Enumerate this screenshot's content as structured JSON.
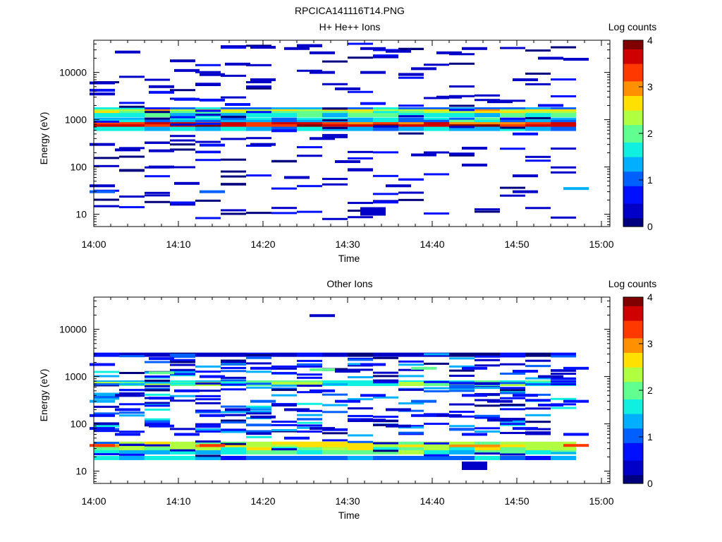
{
  "figure": {
    "title": "RPCICA141116T14.PNG"
  },
  "colors": {
    "palette": [
      "#00007f",
      "#0000c8",
      "#0010ff",
      "#0060ff",
      "#00b0ff",
      "#10f0e0",
      "#60ff90",
      "#b0ff40",
      "#ffe000",
      "#ff9000",
      "#ff3800",
      "#d00000",
      "#7f0000"
    ]
  },
  "chart_data": [
    {
      "type": "heatmap",
      "title": "H+ He++ Ions",
      "xlabel": "Time",
      "ylabel": "Energy (eV)",
      "x_ticks": [
        "14:00",
        "14:10",
        "14:20",
        "14:30",
        "14:40",
        "14:50",
        "15:00"
      ],
      "y_ticks": [
        "10",
        "100",
        "1000",
        "10000"
      ],
      "y_scale": "log",
      "ylim": [
        5.5,
        48000
      ],
      "xlim_minutes": [
        0,
        61
      ],
      "colorbar": {
        "label": "Log counts",
        "ticks": [
          "0",
          "1",
          "2",
          "3",
          "4"
        ],
        "range": [
          0,
          4
        ]
      },
      "bands": [
        {
          "energy": 1650,
          "level": 1.2
        },
        {
          "energy": 1500,
          "level": 2.6
        },
        {
          "energy": 1380,
          "level": 2.2
        },
        {
          "energy": 1250,
          "level": 1.7
        },
        {
          "energy": 1000,
          "level": 1.4
        },
        {
          "energy": 900,
          "level": 1.5
        },
        {
          "energy": 800,
          "level": 3.4
        },
        {
          "energy": 720,
          "level": 3.6
        },
        {
          "energy": 640,
          "level": 1.3
        }
      ],
      "cells": [
        {
          "t": 1,
          "e": 3500,
          "level": 0.3
        },
        {
          "t": 1,
          "e": 4200,
          "level": 0.5
        },
        {
          "t": 1,
          "e": 6000,
          "level": 0.3
        },
        {
          "t": 1,
          "e": 30,
          "level": 0.9
        },
        {
          "t": 1,
          "e": 40,
          "level": 0.3
        },
        {
          "t": 1,
          "e": 300,
          "level": 0.3
        },
        {
          "t": 4,
          "e": 230,
          "level": 0.3
        },
        {
          "t": 4,
          "e": 27000,
          "level": 0.3
        },
        {
          "t": 8,
          "e": 3800,
          "level": 0.5
        },
        {
          "t": 8,
          "e": 5000,
          "level": 0.4
        },
        {
          "t": 8,
          "e": 100,
          "level": 0.3
        },
        {
          "t": 8,
          "e": 220,
          "level": 0.3
        },
        {
          "t": 11,
          "e": 2700,
          "level": 0.5
        },
        {
          "t": 11,
          "e": 11000,
          "level": 0.3
        },
        {
          "t": 11,
          "e": 45,
          "level": 0.3
        },
        {
          "t": 14,
          "e": 2600,
          "level": 0.5
        },
        {
          "t": 14,
          "e": 30,
          "level": 1.1
        },
        {
          "t": 14,
          "e": 290,
          "level": 0.5
        },
        {
          "t": 14,
          "e": 9000,
          "level": 0.3
        },
        {
          "t": 17,
          "e": 15000,
          "level": 0.3
        },
        {
          "t": 17,
          "e": 2100,
          "level": 0.5
        },
        {
          "t": 20,
          "e": 34000,
          "level": 0.3
        },
        {
          "t": 20,
          "e": 7000,
          "level": 0.4
        },
        {
          "t": 20,
          "e": 300,
          "level": 0.4
        },
        {
          "t": 24,
          "e": 32000,
          "level": 0.4
        },
        {
          "t": 24,
          "e": 60,
          "level": 0.3
        },
        {
          "t": 27,
          "e": 26000,
          "level": 0.3
        },
        {
          "t": 27,
          "e": 400,
          "level": 0.4
        },
        {
          "t": 27,
          "e": 10000,
          "level": 0.3
        },
        {
          "t": 30,
          "e": 4500,
          "level": 0.3
        },
        {
          "t": 30,
          "e": 130,
          "level": 0.3
        },
        {
          "t": 33,
          "e": 32000,
          "level": 0.4
        },
        {
          "t": 33,
          "e": 10000,
          "level": 0.3
        },
        {
          "t": 33,
          "e": 11.5,
          "level": 0.2
        },
        {
          "t": 33,
          "e": 2200,
          "level": 0.8
        },
        {
          "t": 36,
          "e": 28000,
          "level": 0.3
        },
        {
          "t": 36,
          "e": 40,
          "level": 0.3
        },
        {
          "t": 39,
          "e": 12000,
          "level": 0.3
        },
        {
          "t": 39,
          "e": 180,
          "level": 0.3
        },
        {
          "t": 42,
          "e": 26000,
          "level": 0.3
        },
        {
          "t": 42,
          "e": 3000,
          "level": 0.3
        },
        {
          "t": 45,
          "e": 32000,
          "level": 0.3
        },
        {
          "t": 45,
          "e": 250,
          "level": 0.4
        },
        {
          "t": 45,
          "e": 110,
          "level": 0.4
        },
        {
          "t": 48,
          "e": 2400,
          "level": 0.3
        },
        {
          "t": 51,
          "e": 7000,
          "level": 0.4
        },
        {
          "t": 51,
          "e": 500,
          "level": 0.5
        },
        {
          "t": 51,
          "e": 30,
          "level": 0.3
        },
        {
          "t": 51,
          "e": 65,
          "level": 0.4
        },
        {
          "t": 54,
          "e": 20000,
          "level": 0.3
        },
        {
          "t": 54,
          "e": 2000,
          "level": 0.6
        },
        {
          "t": 57,
          "e": 35,
          "level": 1.2
        },
        {
          "t": 57,
          "e": 19000,
          "level": 0.3
        }
      ]
    },
    {
      "type": "heatmap",
      "title": "Other Ions",
      "xlabel": "Time",
      "ylabel": "Energy (eV)",
      "x_ticks": [
        "14:00",
        "14:10",
        "14:20",
        "14:30",
        "14:40",
        "14:50",
        "15:00"
      ],
      "y_ticks": [
        "10",
        "100",
        "1000",
        "10000"
      ],
      "y_scale": "log",
      "ylim": [
        5.5,
        48000
      ],
      "xlim_minutes": [
        0,
        61
      ],
      "colorbar": {
        "label": "Log counts",
        "ticks": [
          "0",
          "1",
          "2",
          "3",
          "4"
        ],
        "range": [
          0,
          4
        ]
      },
      "bands": [
        {
          "energy": 2900,
          "level": 0.4
        },
        {
          "energy": 750,
          "level": 1.8
        },
        {
          "energy": 700,
          "level": 2.1
        },
        {
          "energy": 38,
          "level": 2.3
        },
        {
          "energy": 33,
          "level": 2.6
        },
        {
          "energy": 29,
          "level": 2.2
        },
        {
          "energy": 25,
          "level": 1.8
        },
        {
          "energy": 19,
          "level": 1.2
        }
      ],
      "cells": [
        {
          "t": 1,
          "e": 35,
          "level": 3.2
        },
        {
          "t": 1,
          "e": 300,
          "level": 1.2
        },
        {
          "t": 1,
          "e": 150,
          "level": 0.8
        },
        {
          "t": 1,
          "e": 1800,
          "level": 0.6
        },
        {
          "t": 1,
          "e": 80,
          "level": 0.5
        },
        {
          "t": 4,
          "e": 400,
          "level": 0.4
        },
        {
          "t": 4,
          "e": 200,
          "level": 0.5
        },
        {
          "t": 4,
          "e": 60,
          "level": 0.5
        },
        {
          "t": 8,
          "e": 1200,
          "level": 1.9
        },
        {
          "t": 8,
          "e": 350,
          "level": 0.8
        },
        {
          "t": 8,
          "e": 90,
          "level": 0.6
        },
        {
          "t": 8,
          "e": 2400,
          "level": 0.5
        },
        {
          "t": 11,
          "e": 500,
          "level": 0.6
        },
        {
          "t": 11,
          "e": 60,
          "level": 0.7
        },
        {
          "t": 14,
          "e": 35,
          "level": 3.2
        },
        {
          "t": 14,
          "e": 150,
          "level": 0.5
        },
        {
          "t": 14,
          "e": 1000,
          "level": 0.7
        },
        {
          "t": 17,
          "e": 200,
          "level": 0.4
        },
        {
          "t": 20,
          "e": 300,
          "level": 1.0
        },
        {
          "t": 20,
          "e": 140,
          "level": 0.4
        },
        {
          "t": 20,
          "e": 1500,
          "level": 0.6
        },
        {
          "t": 24,
          "e": 200,
          "level": 0.4
        },
        {
          "t": 24,
          "e": 50,
          "level": 0.5
        },
        {
          "t": 27,
          "e": 19500,
          "level": 0.4
        },
        {
          "t": 27,
          "e": 1400,
          "level": 1.9
        },
        {
          "t": 27,
          "e": 500,
          "level": 0.5
        },
        {
          "t": 27,
          "e": 80,
          "level": 0.4
        },
        {
          "t": 30,
          "e": 300,
          "level": 0.7
        },
        {
          "t": 30,
          "e": 1300,
          "level": 0.3
        },
        {
          "t": 33,
          "e": 400,
          "level": 0.5
        },
        {
          "t": 33,
          "e": 1800,
          "level": 0.6
        },
        {
          "t": 33,
          "e": 120,
          "level": 0.4
        },
        {
          "t": 36,
          "e": 200,
          "level": 0.3
        },
        {
          "t": 36,
          "e": 90,
          "level": 0.4
        },
        {
          "t": 39,
          "e": 300,
          "level": 1.1
        },
        {
          "t": 39,
          "e": 1500,
          "level": 1.9
        },
        {
          "t": 39,
          "e": 150,
          "level": 0.6
        },
        {
          "t": 42,
          "e": 150,
          "level": 0.4
        },
        {
          "t": 45,
          "e": 400,
          "level": 0.6
        },
        {
          "t": 45,
          "e": 60,
          "level": 0.5
        },
        {
          "t": 45,
          "e": 13,
          "level": 0.2
        },
        {
          "t": 45,
          "e": 1500,
          "level": 0.5
        },
        {
          "t": 48,
          "e": 300,
          "level": 0.4
        },
        {
          "t": 48,
          "e": 120,
          "level": 0.4
        },
        {
          "t": 51,
          "e": 400,
          "level": 0.7
        },
        {
          "t": 51,
          "e": 1300,
          "level": 0.6
        },
        {
          "t": 51,
          "e": 80,
          "level": 0.5
        },
        {
          "t": 54,
          "e": 250,
          "level": 0.5
        },
        {
          "t": 54,
          "e": 1000,
          "level": 0.4
        },
        {
          "t": 57,
          "e": 35,
          "level": 3.4
        },
        {
          "t": 57,
          "e": 300,
          "level": 0.8
        },
        {
          "t": 57,
          "e": 1500,
          "level": 0.6
        },
        {
          "t": 57,
          "e": 60,
          "level": 0.5
        }
      ]
    }
  ]
}
